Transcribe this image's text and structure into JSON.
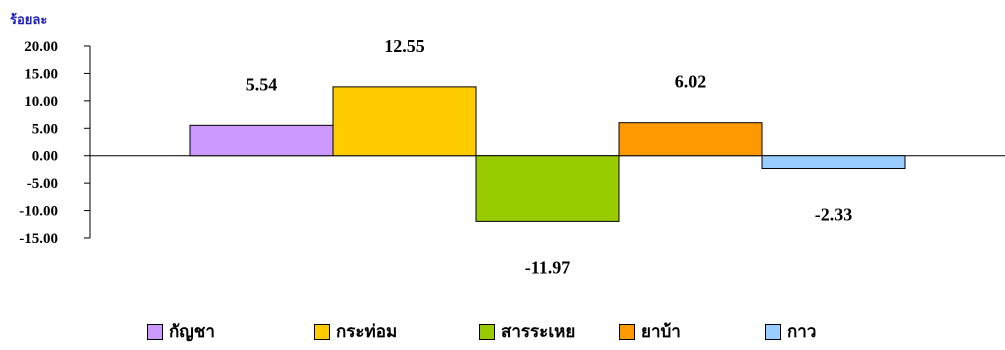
{
  "chart_data": {
    "type": "bar",
    "ylabel": "ร้อยละ",
    "ylim": [
      -15,
      20
    ],
    "yticks": [
      "20.00",
      "15.00",
      "10.00",
      "5.00",
      "0.00",
      "-5.00",
      "-10.00",
      "-15.00"
    ],
    "grid": false,
    "legend_position": "bottom",
    "series": [
      {
        "name": "กัญชา",
        "value": 5.54,
        "label": "5.54",
        "color": "#cc99ff"
      },
      {
        "name": "กระท่อม",
        "value": 12.55,
        "label": "12.55",
        "color": "#ffcc00"
      },
      {
        "name": "สารระเหย",
        "value": -11.97,
        "label": "-11.97",
        "color": "#99cc00"
      },
      {
        "name": "ยาบ้า",
        "value": 6.02,
        "label": "6.02",
        "color": "#ff9900"
      },
      {
        "name": "กาว",
        "value": -2.33,
        "label": "-2.33",
        "color": "#99ccff"
      }
    ]
  }
}
